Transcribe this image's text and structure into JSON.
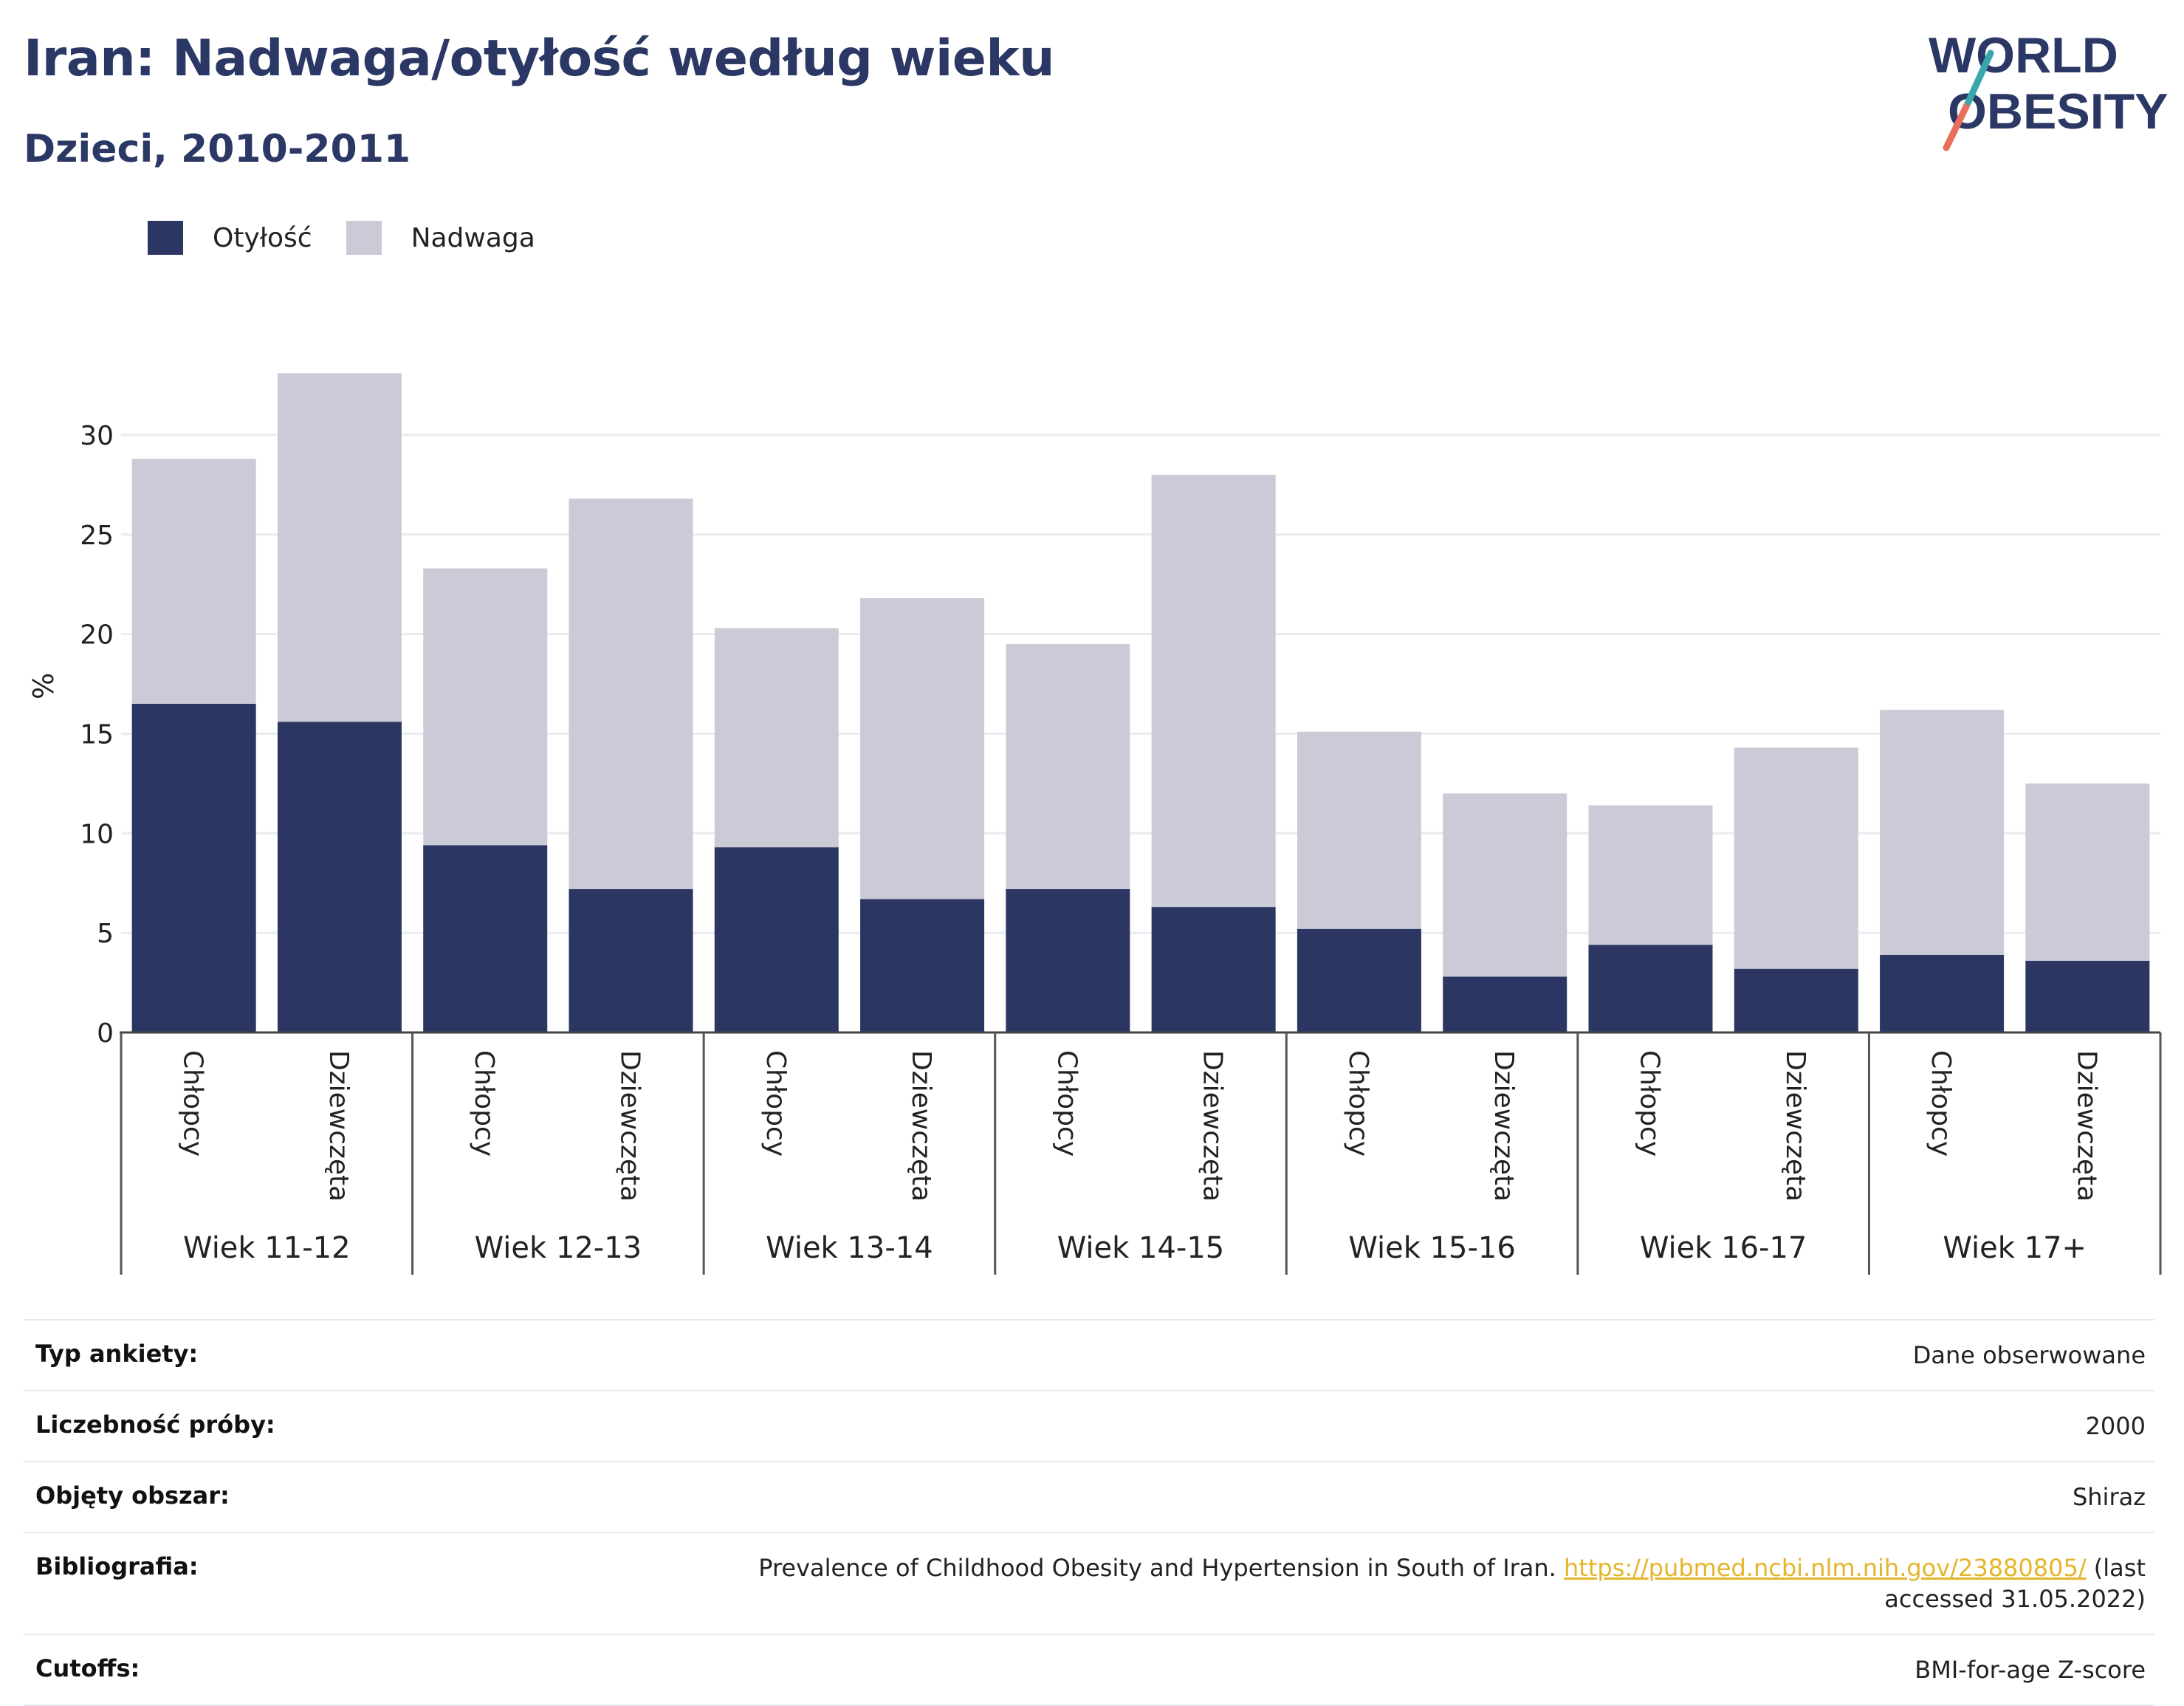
{
  "header": {
    "title": "Iran: Nadwaga/otyłość według wieku",
    "subtitle": "Dzieci, 2010-2011"
  },
  "logo": {
    "line1": "WORLD",
    "line2": "OBESITY"
  },
  "colors": {
    "obesity": "#2b3663",
    "overweight": "#cacbd6",
    "title": "#2b3764",
    "link": "#e4b52a",
    "logo_teal": "#3aa7ad",
    "logo_coral": "#e8705a"
  },
  "legend": [
    {
      "label": "Otyłość",
      "color": "#2b3663"
    },
    {
      "label": "Nadwaga",
      "color": "#cacbd6"
    }
  ],
  "chart_data": {
    "type": "bar",
    "stacked": true,
    "ylabel": "%",
    "ylim": [
      0,
      33
    ],
    "yticks": [
      0,
      5,
      10,
      15,
      20,
      25,
      30
    ],
    "grid": true,
    "legend_position": "top-left",
    "groups": [
      "Wiek 11-12",
      "Wiek 12-13",
      "Wiek 13-14",
      "Wiek 14-15",
      "Wiek 15-16",
      "Wiek 16-17",
      "Wiek 17+"
    ],
    "categories": [
      "Chłopcy",
      "Dziewczęta",
      "Chłopcy",
      "Dziewczęta",
      "Chłopcy",
      "Dziewczęta",
      "Chłopcy",
      "Dziewczęta",
      "Chłopcy",
      "Dziewczęta",
      "Chłopcy",
      "Dziewczęta",
      "Chłopcy",
      "Dziewczęta"
    ],
    "series": [
      {
        "name": "Otyłość",
        "values": [
          16.5,
          15.6,
          9.4,
          7.2,
          9.3,
          6.7,
          7.2,
          6.3,
          5.2,
          2.8,
          4.4,
          3.2,
          3.9,
          3.6
        ]
      },
      {
        "name": "Nadwaga",
        "values": [
          12.3,
          17.5,
          13.9,
          19.6,
          11.0,
          15.1,
          12.3,
          21.7,
          9.9,
          9.2,
          7.0,
          11.1,
          12.3,
          8.9
        ]
      }
    ]
  },
  "info": {
    "survey_type": {
      "label": "Typ ankiety:",
      "value": "Dane obserwowane"
    },
    "sample_size": {
      "label": "Liczebność próby:",
      "value": "2000"
    },
    "area": {
      "label": "Objęty obszar:",
      "value": "Shiraz"
    },
    "bibliography": {
      "label": "Bibliografia:",
      "text": "Prevalence of Childhood Obesity and Hypertension in South of Iran.",
      "link": "https://pubmed.ncbi.nlm.nih.gov/23880805/",
      "suffix": "(last accessed 31.05.2022)"
    },
    "cutoffs": {
      "label": "Cutoffs:",
      "value": "BMI-for-age Z-score"
    }
  }
}
